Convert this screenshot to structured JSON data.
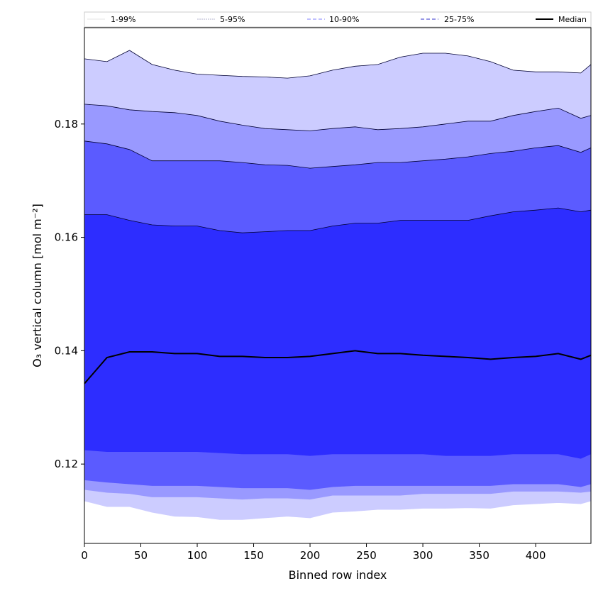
{
  "chart_data": {
    "type": "area",
    "xlabel": "Binned row index",
    "ylabel": "O₃ vertical column [mol m⁻²]",
    "xlim": [
      0,
      449
    ],
    "ylim": [
      0.106,
      0.197
    ],
    "x_ticks": [
      0,
      50,
      100,
      150,
      200,
      250,
      300,
      350,
      400
    ],
    "y_ticks": [
      0.12,
      0.14,
      0.16,
      0.18
    ],
    "legend_position": "top",
    "x": [
      0,
      20,
      40,
      60,
      80,
      100,
      120,
      140,
      160,
      180,
      200,
      220,
      240,
      260,
      280,
      300,
      320,
      340,
      360,
      380,
      400,
      420,
      440,
      449
    ],
    "bands": [
      {
        "name": "1-99%",
        "color": "#ccccff",
        "line_color": "#e6e6e6",
        "upper": [
          0.1915,
          0.191,
          0.193,
          0.1905,
          0.1895,
          0.1888,
          0.1886,
          0.1884,
          0.1883,
          0.1881,
          0.1885,
          0.1895,
          0.1902,
          0.1905,
          0.1918,
          0.1925,
          0.1925,
          0.192,
          0.191,
          0.1895,
          0.1892,
          0.1892,
          0.189,
          0.1905
        ],
        "lower": [
          0.1135,
          0.1125,
          0.1125,
          0.1115,
          0.1108,
          0.1107,
          0.1102,
          0.1102,
          0.1105,
          0.1108,
          0.1105,
          0.1115,
          0.1117,
          0.112,
          0.112,
          0.1122,
          0.1122,
          0.1123,
          0.1122,
          0.1128,
          0.113,
          0.1132,
          0.113,
          0.1135
        ]
      },
      {
        "name": "5-95%",
        "color": "#9999ff",
        "line_color": "#b3b3cc",
        "upper": [
          0.1835,
          0.1832,
          0.1825,
          0.1822,
          0.182,
          0.1815,
          0.1805,
          0.1798,
          0.1792,
          0.179,
          0.1788,
          0.1792,
          0.1795,
          0.179,
          0.1792,
          0.1795,
          0.18,
          0.1805,
          0.1805,
          0.1815,
          0.1822,
          0.1828,
          0.181,
          0.1815
        ],
        "lower": [
          0.1155,
          0.115,
          0.1148,
          0.1142,
          0.1142,
          0.1142,
          0.114,
          0.1138,
          0.114,
          0.114,
          0.1138,
          0.1145,
          0.1145,
          0.1145,
          0.1145,
          0.1148,
          0.1148,
          0.1148,
          0.1148,
          0.1152,
          0.1152,
          0.1152,
          0.115,
          0.1152
        ]
      },
      {
        "name": "10-90%",
        "color": "#5b5bff",
        "line_color": "#8080ff",
        "upper": [
          0.177,
          0.1765,
          0.1755,
          0.1735,
          0.1735,
          0.1735,
          0.1735,
          0.1732,
          0.1728,
          0.1727,
          0.1722,
          0.1725,
          0.1728,
          0.1732,
          0.1732,
          0.1735,
          0.1738,
          0.1742,
          0.1748,
          0.1752,
          0.1758,
          0.1762,
          0.175,
          0.1758
        ],
        "lower": [
          0.1172,
          0.1168,
          0.1165,
          0.1162,
          0.1162,
          0.1162,
          0.116,
          0.1158,
          0.1158,
          0.1158,
          0.1155,
          0.116,
          0.1162,
          0.1162,
          0.1162,
          0.1162,
          0.1162,
          0.1162,
          0.1162,
          0.1165,
          0.1165,
          0.1165,
          0.116,
          0.1165
        ]
      },
      {
        "name": "25-75%",
        "color": "#2d2dff",
        "line_color": "#3333cc",
        "upper": [
          0.164,
          0.164,
          0.163,
          0.1622,
          0.162,
          0.162,
          0.1612,
          0.1608,
          0.161,
          0.1612,
          0.1612,
          0.162,
          0.1625,
          0.1625,
          0.163,
          0.163,
          0.163,
          0.163,
          0.1638,
          0.1645,
          0.1648,
          0.1652,
          0.1645,
          0.1648
        ],
        "lower": [
          0.1225,
          0.1222,
          0.1222,
          0.1222,
          0.1222,
          0.1222,
          0.122,
          0.1218,
          0.1218,
          0.1218,
          0.1215,
          0.1218,
          0.1218,
          0.1218,
          0.1218,
          0.1218,
          0.1215,
          0.1215,
          0.1215,
          0.1218,
          0.1218,
          0.1218,
          0.121,
          0.1218
        ]
      }
    ],
    "median": {
      "name": "Median",
      "color": "#000000",
      "values": [
        0.1342,
        0.1388,
        0.1398,
        0.1398,
        0.1395,
        0.1395,
        0.139,
        0.139,
        0.1388,
        0.1388,
        0.139,
        0.1395,
        0.14,
        0.1395,
        0.1395,
        0.1392,
        0.139,
        0.1388,
        0.1385,
        0.1388,
        0.139,
        0.1395,
        0.1385,
        0.1392
      ]
    }
  }
}
